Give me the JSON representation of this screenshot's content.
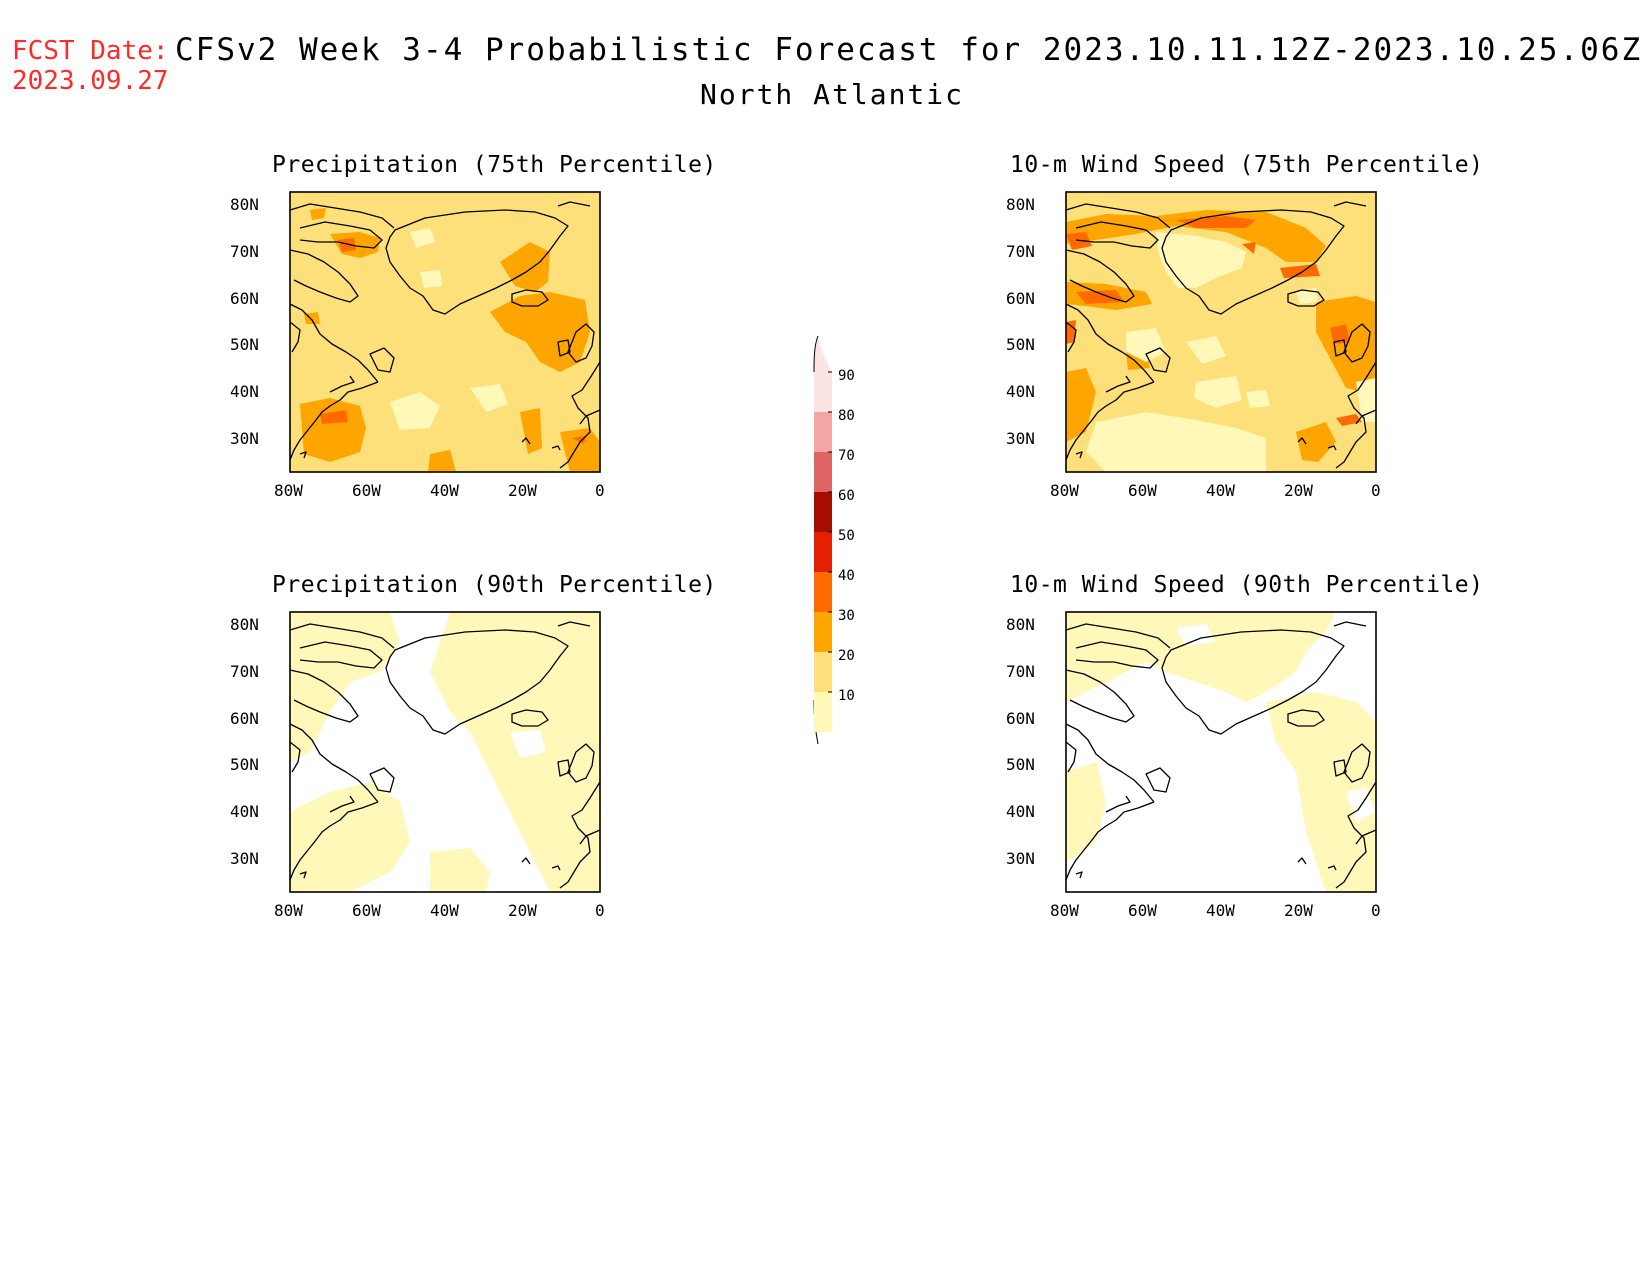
{
  "header": {
    "fcst_label": "FCST Date:",
    "fcst_date": "2023.09.27",
    "title": "CFSv2 Week 3-4 Probabilistic Forecast for 2023.10.11.12Z-2023.10.25.06Z",
    "region": "North Atlantic"
  },
  "panels": [
    {
      "title": "Precipitation (75th Percentile)"
    },
    {
      "title": "10-m Wind Speed (75th Percentile)"
    },
    {
      "title": "Precipitation (90th Percentile)"
    },
    {
      "title": "10-m Wind Speed (90th Percentile)"
    }
  ],
  "axes": {
    "lat_labels": [
      "80N",
      "70N",
      "60N",
      "50N",
      "40N",
      "30N"
    ],
    "lon_labels": [
      "80W",
      "60W",
      "40W",
      "20W",
      "0"
    ],
    "lat_range": [
      25,
      85
    ],
    "lon_range": [
      -80,
      0
    ]
  },
  "colorbar": {
    "levels": [
      "10",
      "20",
      "30",
      "40",
      "50",
      "60",
      "70",
      "80",
      "90"
    ],
    "colors": [
      "#fff8b8",
      "#fde07a",
      "#ffa500",
      "#ff6a00",
      "#e42000",
      "#a50d00",
      "#df6464",
      "#f4a6a6",
      "#fde4e4"
    ]
  },
  "map_colors": {
    "c10": "#fff8b8",
    "c20": "#fde07a",
    "c30": "#ffa500",
    "c40": "#ff6a00",
    "coast": "#000000"
  }
}
